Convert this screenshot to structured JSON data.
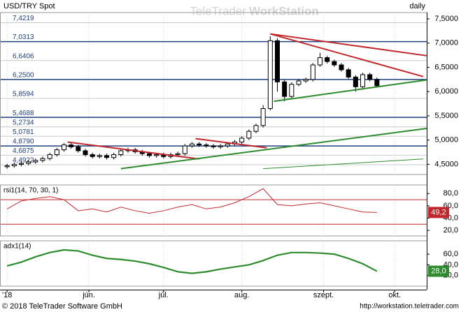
{
  "header": {
    "watermark_light": "TeleTrader",
    "watermark_bold": "WorkStation"
  },
  "footer": {
    "copyright": "© 2018 TeleTrader Software GmbH",
    "url": "http://workstation.teletrader.com"
  },
  "chart_data": [
    {
      "type": "candlestick",
      "title": "USD/TRY Spot",
      "period": "daily",
      "xlim": [
        0,
        120
      ],
      "xticks": [
        {
          "value": 2,
          "label": "'18"
        },
        {
          "value": 25,
          "label": "jún."
        },
        {
          "value": 46,
          "label": "júl."
        },
        {
          "value": 68,
          "label": "aug."
        },
        {
          "value": 91,
          "label": "szept."
        },
        {
          "value": 111,
          "label": "okt."
        }
      ],
      "ylim": [
        4.29,
        7.63
      ],
      "yticks": [
        {
          "value": 7.5,
          "label": "7,5000"
        },
        {
          "value": 7,
          "label": "7,0000"
        },
        {
          "value": 6.5,
          "label": "6,5000"
        },
        {
          "value": 6,
          "label": "6,0000"
        },
        {
          "value": 5.5,
          "label": "5,5000"
        },
        {
          "value": 5,
          "label": "5,0000"
        },
        {
          "value": 4.5,
          "label": "4,5000"
        }
      ],
      "levels": [
        {
          "value": 7.4219,
          "label": "7,4219"
        },
        {
          "value": 7.0313,
          "label": "7,0313"
        },
        {
          "value": 6.6406,
          "label": "6,6406"
        },
        {
          "value": 6.25,
          "label": "6,2500"
        },
        {
          "value": 5.8594,
          "label": "5,8594"
        },
        {
          "value": 5.4688,
          "label": "5,4688"
        },
        {
          "value": 5.2734,
          "label": "5,2734"
        },
        {
          "value": 5.0781,
          "label": "5,0781"
        },
        {
          "value": 4.879,
          "label": "4,8790"
        },
        {
          "value": 4.6875,
          "label": "4,6875"
        },
        {
          "value": 4.4922,
          "label": "4,4922"
        }
      ],
      "level_colors": [
        "#c8c8c8",
        "#1f3f7f",
        "#c8c8c8",
        "#1f3f7f",
        "#c8c8c8",
        "#1f3f7f",
        "#c8c8c8",
        "#c8c8c8",
        "#1f3f7f",
        "#c8c8c8",
        "#c8c8c8"
      ],
      "x": [
        2,
        4,
        6,
        8,
        10,
        12,
        14,
        16,
        18,
        20,
        22,
        24,
        26,
        28,
        30,
        32,
        34,
        36,
        38,
        40,
        42,
        44,
        46,
        48,
        50,
        52,
        54,
        56,
        58,
        60,
        62,
        64,
        66,
        68,
        70,
        72,
        74,
        76,
        78,
        80,
        82,
        84,
        86,
        88,
        90,
        92,
        94,
        96,
        98,
        100,
        102,
        104,
        106
      ],
      "open": [
        4.45,
        4.47,
        4.5,
        4.52,
        4.55,
        4.58,
        4.62,
        4.7,
        4.8,
        4.9,
        4.86,
        4.78,
        4.7,
        4.66,
        4.68,
        4.64,
        4.7,
        4.78,
        4.8,
        4.76,
        4.72,
        4.68,
        4.7,
        4.66,
        4.7,
        4.72,
        4.88,
        4.92,
        4.9,
        4.88,
        4.86,
        4.88,
        4.92,
        4.96,
        5.04,
        5.18,
        5.3,
        5.65,
        7.05,
        6.2,
        5.9,
        6.15,
        6.22,
        6.25,
        6.55,
        6.7,
        6.62,
        6.55,
        6.45,
        6.3,
        6.1,
        6.35,
        6.25
      ],
      "high": [
        4.51,
        4.54,
        4.56,
        4.59,
        4.62,
        4.66,
        4.74,
        4.84,
        4.94,
        4.94,
        4.9,
        4.82,
        4.74,
        4.72,
        4.72,
        4.74,
        4.82,
        4.84,
        4.84,
        4.8,
        4.76,
        4.74,
        4.74,
        4.74,
        4.76,
        4.92,
        4.96,
        4.96,
        4.94,
        4.92,
        4.92,
        4.96,
        5.0,
        5.08,
        5.22,
        5.34,
        5.72,
        7.14,
        7.1,
        6.24,
        6.19,
        6.26,
        6.29,
        6.59,
        6.8,
        6.74,
        6.66,
        6.59,
        6.49,
        6.34,
        6.39,
        6.39,
        6.29
      ],
      "low": [
        4.41,
        4.43,
        4.46,
        4.48,
        4.51,
        4.54,
        4.58,
        4.66,
        4.76,
        4.82,
        4.74,
        4.66,
        4.62,
        4.62,
        4.6,
        4.6,
        4.66,
        4.74,
        4.72,
        4.68,
        4.64,
        4.64,
        4.62,
        4.62,
        4.66,
        4.68,
        4.84,
        4.86,
        4.84,
        4.82,
        4.82,
        4.84,
        4.88,
        4.92,
        5.0,
        5.14,
        5.26,
        5.61,
        6.0,
        5.8,
        5.86,
        6.11,
        6.18,
        6.21,
        6.51,
        6.58,
        6.51,
        6.41,
        6.26,
        6.0,
        6.06,
        6.21,
        6.08
      ],
      "close": [
        4.47,
        4.5,
        4.52,
        4.55,
        4.58,
        4.62,
        4.7,
        4.8,
        4.9,
        4.86,
        4.78,
        4.7,
        4.66,
        4.68,
        4.64,
        4.7,
        4.78,
        4.8,
        4.76,
        4.72,
        4.68,
        4.7,
        4.66,
        4.7,
        4.72,
        4.88,
        4.92,
        4.9,
        4.88,
        4.86,
        4.88,
        4.92,
        4.96,
        5.04,
        5.18,
        5.3,
        5.65,
        7.05,
        6.2,
        5.9,
        6.15,
        6.22,
        6.25,
        6.55,
        6.7,
        6.62,
        6.55,
        6.45,
        6.3,
        6.1,
        6.35,
        6.25,
        6.12
      ],
      "up_color": "#ffffff",
      "down_color": "#000000",
      "trendlines": [
        {
          "color": "#c0282d",
          "x": [
            19,
            56
          ],
          "y": [
            4.96,
            4.61
          ]
        },
        {
          "color": "#c0282d",
          "x": [
            55,
            75
          ],
          "y": [
            5.03,
            4.84
          ]
        },
        {
          "color": "#c0282d",
          "x": [
            76,
            120
          ],
          "y": [
            7.19,
            6.74
          ]
        },
        {
          "color": "#c0282d",
          "x": [
            76,
            119
          ],
          "y": [
            7.19,
            6.31
          ]
        },
        {
          "color": "#2e8b2e",
          "x": [
            34,
            120
          ],
          "y": [
            4.41,
            5.24
          ]
        },
        {
          "color": "#2e8b2e",
          "x": [
            77,
            120
          ],
          "y": [
            5.8,
            6.24
          ]
        },
        {
          "color": "#2e8b2e",
          "x": [
            74,
            119
          ],
          "y": [
            4.41,
            4.61
          ]
        }
      ]
    },
    {
      "type": "line",
      "title": "rsi1(14, 70, 30, 1)",
      "color": "#c0282d",
      "levels": [
        70,
        30
      ],
      "ylim": [
        11,
        94
      ],
      "yticks": [
        {
          "value": 80,
          "label": "80,0"
        },
        {
          "value": 60,
          "label": "60,0"
        },
        {
          "value": 40,
          "label": "40,0"
        },
        {
          "value": 20,
          "label": "20,0"
        }
      ],
      "x": [
        2,
        6,
        10,
        14,
        18,
        22,
        26,
        30,
        34,
        38,
        42,
        46,
        50,
        54,
        58,
        62,
        66,
        70,
        74,
        78,
        82,
        86,
        90,
        94,
        98,
        102,
        106
      ],
      "values": [
        55,
        68,
        72,
        75,
        70,
        52,
        55,
        50,
        58,
        52,
        48,
        52,
        58,
        62,
        55,
        58,
        65,
        75,
        88,
        62,
        60,
        63,
        65,
        60,
        55,
        50,
        49.2
      ],
      "value_labels": [
        null,
        null,
        null,
        null,
        null,
        null,
        null,
        null,
        null,
        null,
        null,
        null,
        null,
        null,
        null,
        null,
        null,
        null,
        null,
        null,
        null,
        null,
        null,
        null,
        null,
        null,
        "49,2"
      ]
    },
    {
      "type": "line",
      "title": "adx1(14)",
      "color": "#2e8b2e",
      "ylim": [
        0,
        85
      ],
      "yticks": [
        {
          "value": 60,
          "label": "60,0"
        },
        {
          "value": 40,
          "label": "40,0"
        },
        {
          "value": 20,
          "label": "20,0"
        }
      ],
      "x": [
        2,
        6,
        10,
        14,
        18,
        22,
        26,
        30,
        34,
        38,
        42,
        46,
        50,
        54,
        58,
        62,
        66,
        70,
        74,
        78,
        82,
        86,
        90,
        94,
        98,
        102,
        106
      ],
      "values": [
        38,
        45,
        55,
        63,
        68,
        66,
        58,
        52,
        50,
        47,
        42,
        35,
        27,
        24,
        27,
        32,
        36,
        40,
        48,
        58,
        63,
        63,
        62,
        60,
        52,
        42,
        28
      ],
      "value_labels": [
        null,
        null,
        null,
        null,
        null,
        null,
        null,
        null,
        null,
        null,
        null,
        null,
        null,
        null,
        null,
        null,
        null,
        null,
        null,
        null,
        null,
        null,
        null,
        null,
        null,
        null,
        "28,0"
      ]
    }
  ]
}
